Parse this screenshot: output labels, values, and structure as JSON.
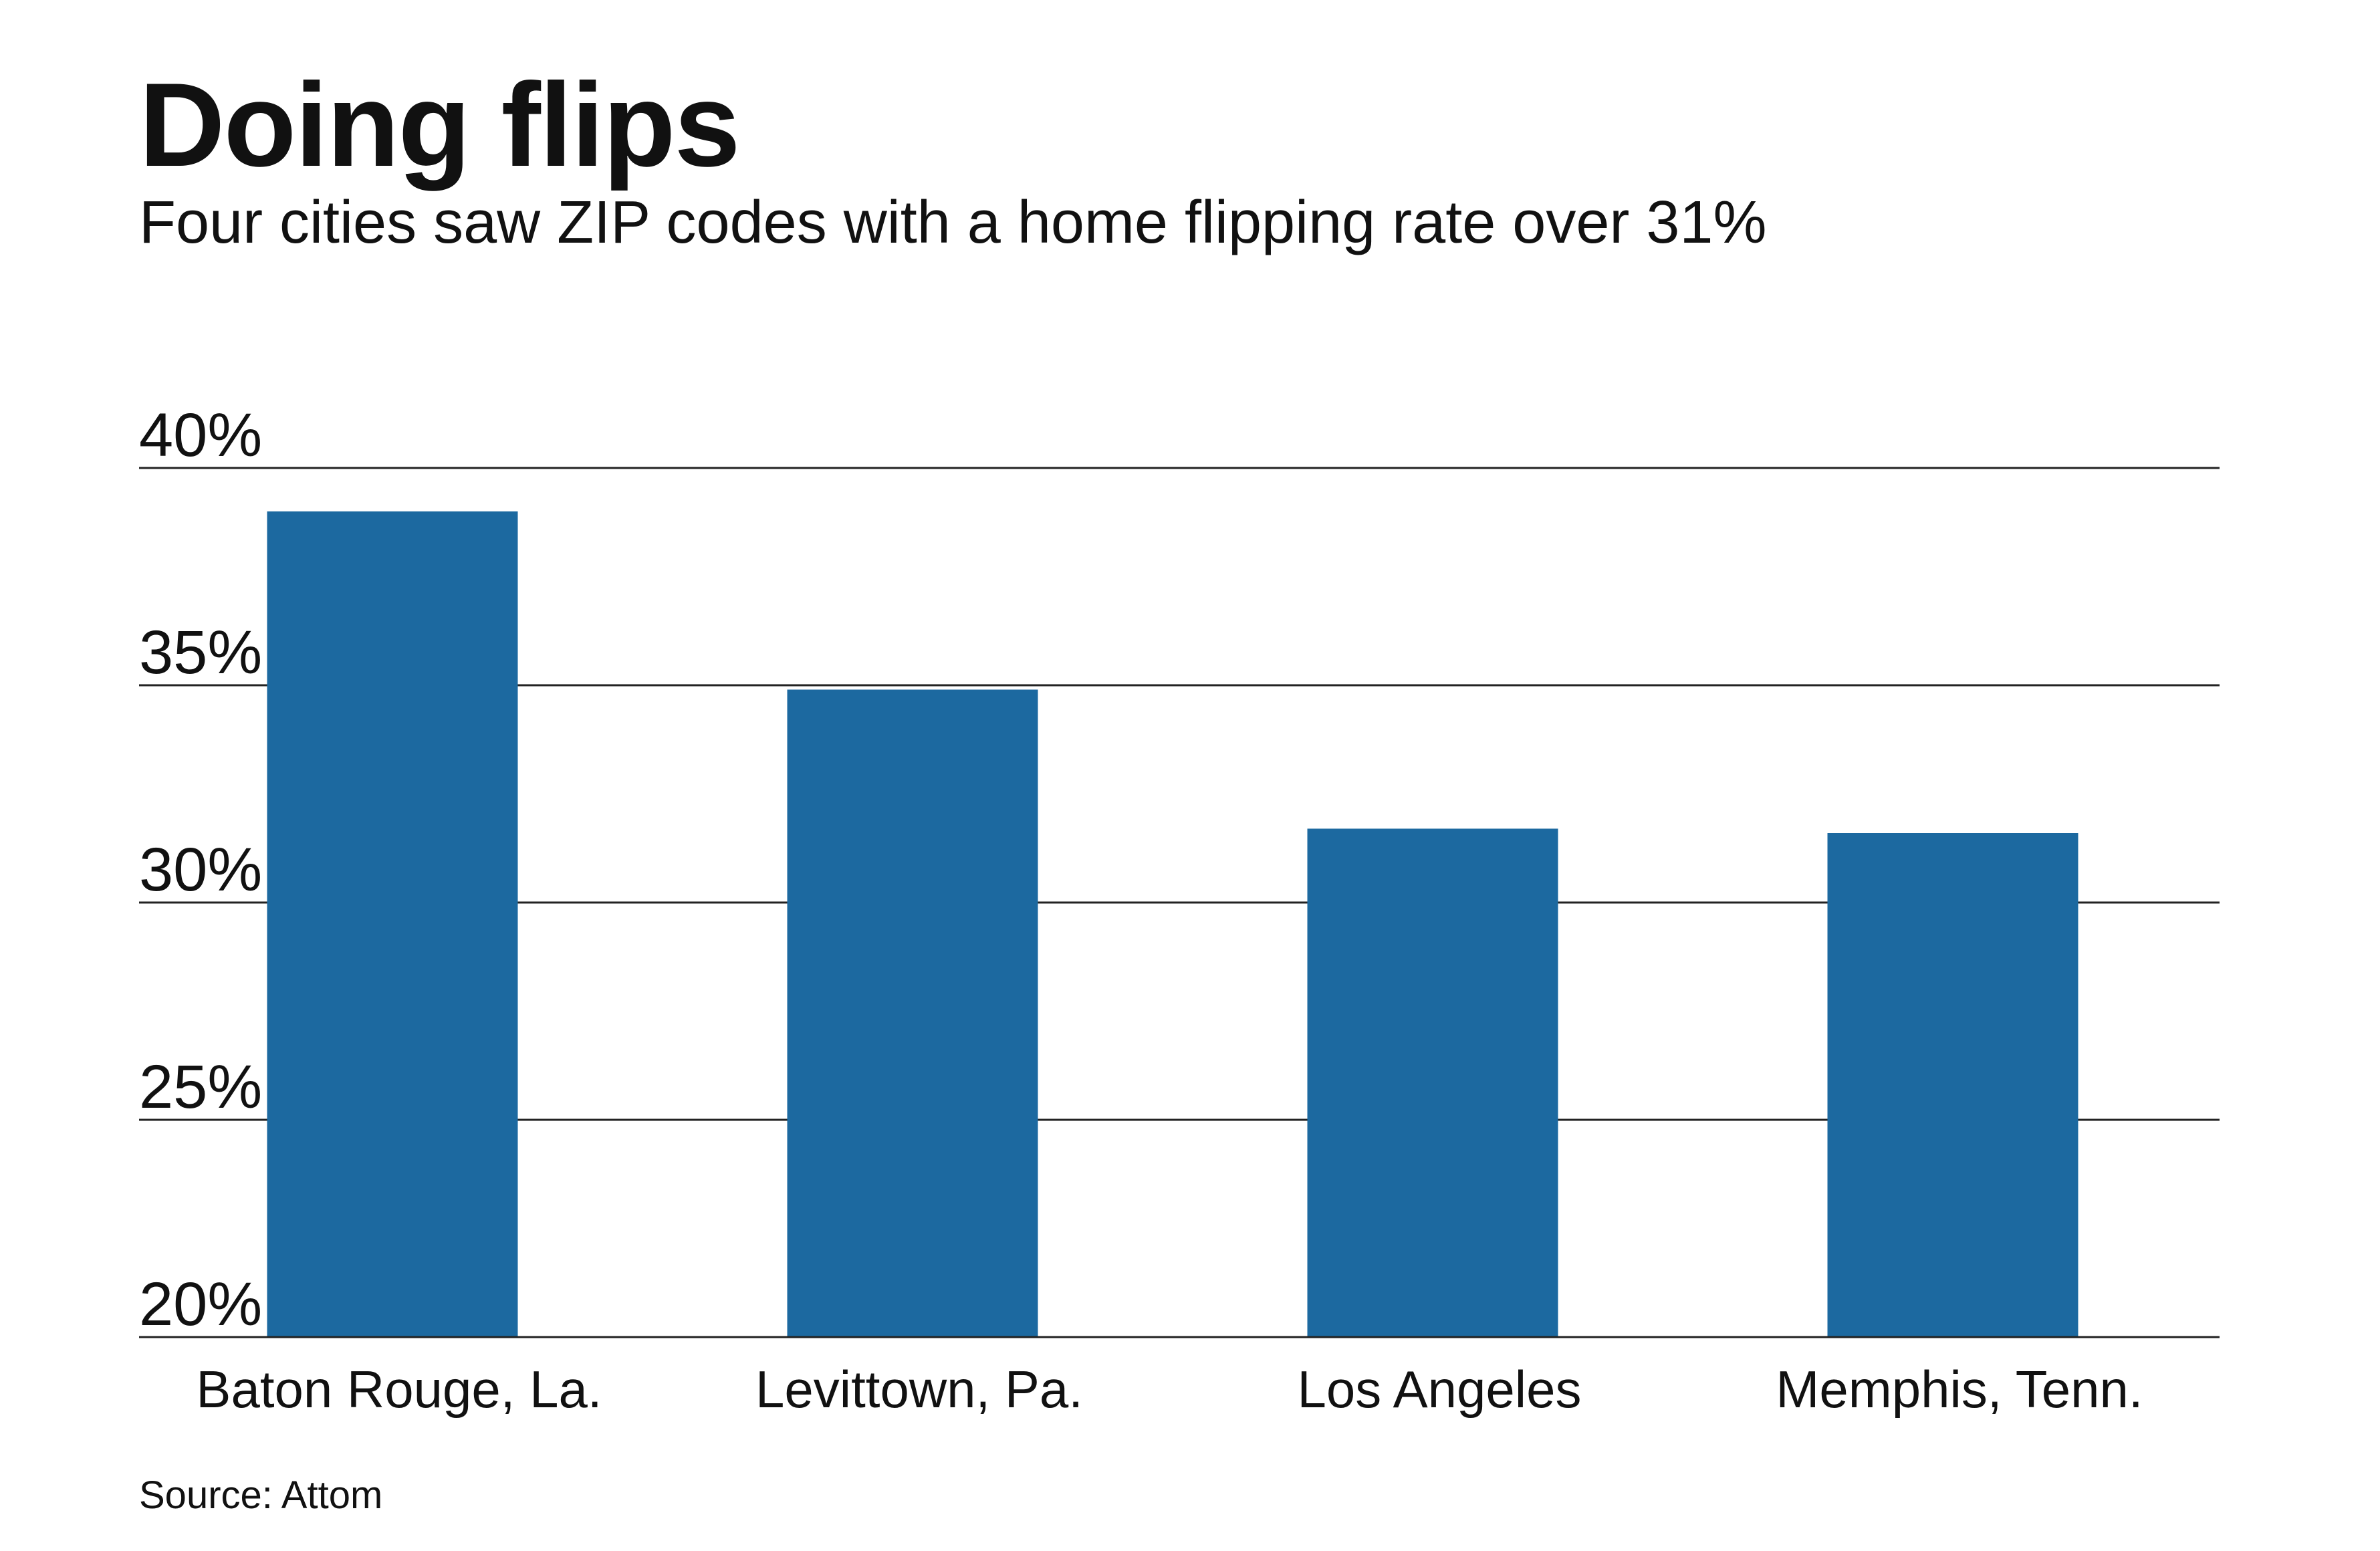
{
  "title": "Doing flips",
  "subtitle": "Four cities saw ZIP codes with a home flipping rate over 31%",
  "source": "Source: Attom",
  "colors": {
    "bar": "#1c69a0",
    "gridline": "#222222",
    "text": "#111111",
    "background": "#ffffff"
  },
  "chart_data": {
    "type": "bar",
    "categories": [
      "Baton Rouge, La.",
      "Levittown, Pa.",
      "Los Angeles",
      "Memphis, Tenn."
    ],
    "values": [
      39.0,
      34.9,
      31.7,
      31.6
    ],
    "title": "Doing flips",
    "subtitle": "Four cities saw ZIP codes with a home flipping rate over 31%",
    "xlabel": "",
    "ylabel": "",
    "ylim": [
      20,
      40
    ],
    "yticks": [
      20,
      25,
      30,
      35,
      40
    ],
    "ytick_labels": [
      "20%",
      "25%",
      "30%",
      "35%",
      "40%"
    ],
    "grid": true,
    "legend": "none"
  }
}
